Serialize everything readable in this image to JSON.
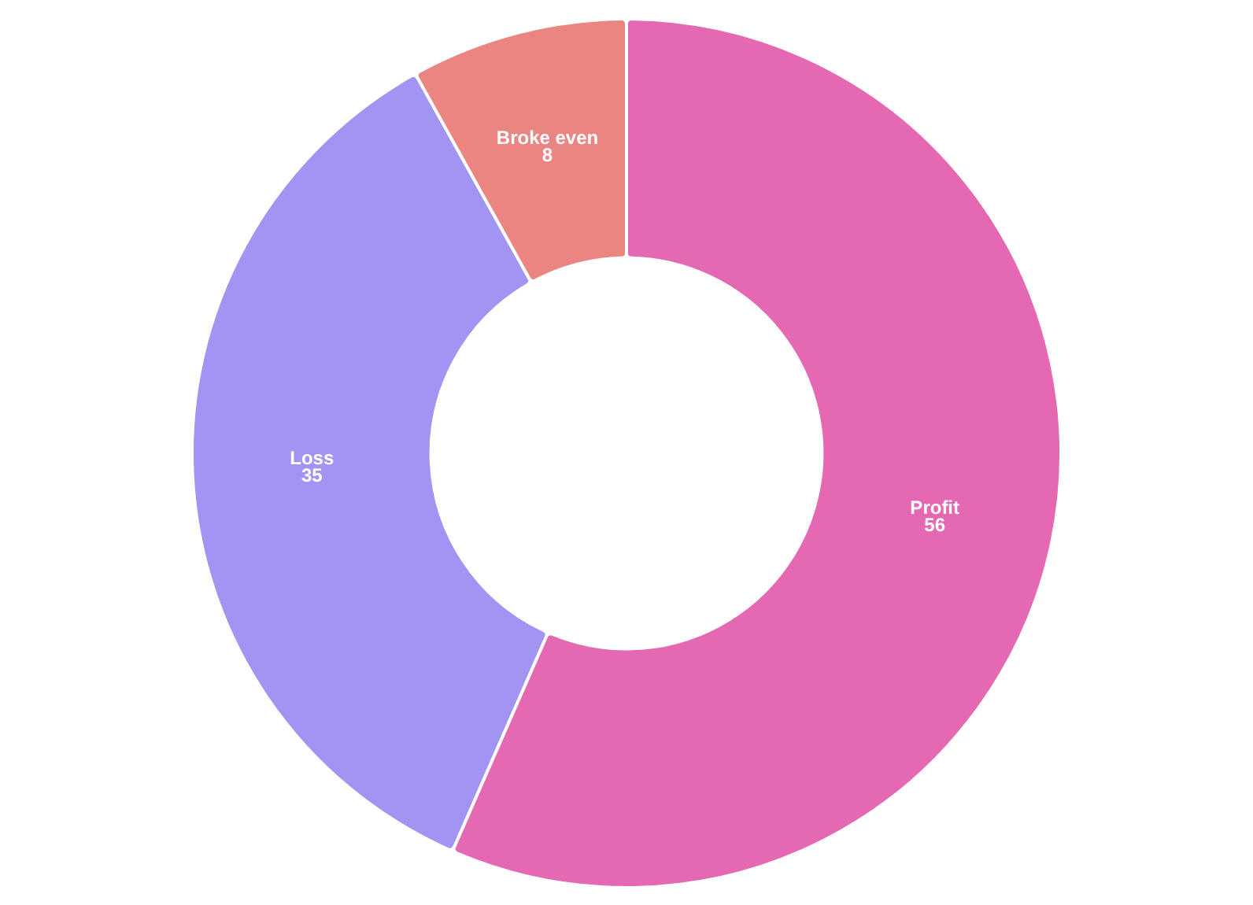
{
  "chart_data": {
    "type": "donut",
    "categories": [
      "Profit",
      "Loss",
      "Broke even"
    ],
    "values": [
      56,
      35,
      8
    ],
    "colors": [
      "#e468b2",
      "#a294f2",
      "#eb8582"
    ],
    "data_labels": true,
    "legend": false
  }
}
